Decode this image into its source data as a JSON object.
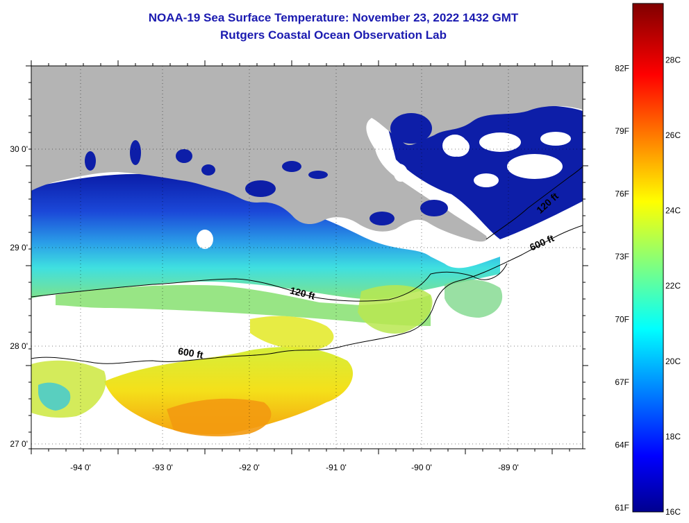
{
  "header": {
    "title": "NOAA-19 Sea Surface Temperature:  November 23, 2022 1432 GMT",
    "subtitle": "Rutgers Coastal Ocean Observation Lab"
  },
  "map": {
    "lon_labels": [
      "-94 0'",
      "-93 0'",
      "-92 0'",
      "-91 0'",
      "-90 0'",
      "-89 0'"
    ],
    "lat_labels": [
      "30 0'",
      "29 0'",
      "28 0'",
      "27 0'"
    ],
    "contours": [
      "120 ft",
      "600 ft",
      "600 ft",
      "120 ft"
    ],
    "colors": {
      "land": "#b4b4b4",
      "cloud": "#ffffff",
      "grid": "#000000"
    }
  },
  "colorbar": {
    "fahrenheit": [
      "82F",
      "79F",
      "76F",
      "73F",
      "70F",
      "67F",
      "64F",
      "61F"
    ],
    "celsius": [
      "28C",
      "26C",
      "24C",
      "22C",
      "20C",
      "18C",
      "16C"
    ],
    "range_c": [
      16,
      29.5
    ]
  }
}
